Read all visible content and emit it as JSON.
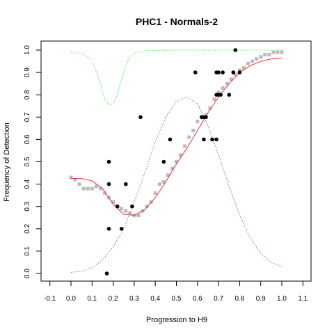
{
  "chart_data": {
    "type": "scatter",
    "title": "PHC1 - Normals-2",
    "xlabel": "Progression to H9",
    "ylabel": "Frequency of Detection",
    "xlim": [
      -0.1,
      1.1
    ],
    "ylim": [
      0.0,
      1.0
    ],
    "xticks": [
      "-0.1",
      "0.0",
      "0.1",
      "0.2",
      "0.3",
      "0.4",
      "0.5",
      "0.6",
      "0.7",
      "0.8",
      "0.9",
      "1.0",
      "1.1"
    ],
    "yticks": [
      "0.0",
      "0.1",
      "0.2",
      "0.3",
      "0.4",
      "0.5",
      "0.6",
      "0.7",
      "0.8",
      "0.9",
      "1.0"
    ],
    "grid": false,
    "series": [
      {
        "kind": "points",
        "color": "#000000",
        "points": [
          [
            0.17,
            0.0
          ],
          [
            0.18,
            0.2
          ],
          [
            0.18,
            0.5
          ],
          [
            0.18,
            0.4
          ],
          [
            0.22,
            0.3
          ],
          [
            0.24,
            0.2
          ],
          [
            0.26,
            0.4
          ],
          [
            0.29,
            0.3
          ],
          [
            0.33,
            0.7
          ],
          [
            0.44,
            0.5
          ],
          [
            0.47,
            0.6
          ],
          [
            0.59,
            0.9
          ],
          [
            0.62,
            0.7
          ],
          [
            0.63,
            0.6
          ],
          [
            0.63,
            0.7
          ],
          [
            0.64,
            0.7
          ],
          [
            0.67,
            0.6
          ],
          [
            0.69,
            0.6
          ],
          [
            0.69,
            0.8
          ],
          [
            0.69,
            0.9
          ],
          [
            0.7,
            0.9
          ],
          [
            0.7,
            0.8
          ],
          [
            0.71,
            0.8
          ],
          [
            0.72,
            0.9
          ],
          [
            0.75,
            0.8
          ],
          [
            0.77,
            0.9
          ],
          [
            0.78,
            1.0
          ],
          [
            0.8,
            0.9
          ]
        ]
      },
      {
        "kind": "running-mean",
        "color": "#bbbbbb",
        "points": [
          [
            0.0,
            0.43
          ],
          [
            0.02,
            0.42
          ],
          [
            0.04,
            0.4
          ],
          [
            0.06,
            0.38
          ],
          [
            0.08,
            0.38
          ],
          [
            0.1,
            0.38
          ],
          [
            0.12,
            0.39
          ],
          [
            0.14,
            0.38
          ],
          [
            0.16,
            0.36
          ],
          [
            0.18,
            0.34
          ],
          [
            0.2,
            0.32
          ],
          [
            0.22,
            0.3
          ],
          [
            0.24,
            0.29
          ],
          [
            0.26,
            0.28
          ],
          [
            0.28,
            0.27
          ],
          [
            0.3,
            0.26
          ],
          [
            0.32,
            0.26
          ],
          [
            0.34,
            0.28
          ],
          [
            0.36,
            0.3
          ],
          [
            0.38,
            0.32
          ],
          [
            0.4,
            0.36
          ],
          [
            0.42,
            0.4
          ],
          [
            0.44,
            0.41
          ],
          [
            0.46,
            0.44
          ],
          [
            0.48,
            0.47
          ],
          [
            0.5,
            0.5
          ],
          [
            0.52,
            0.53
          ],
          [
            0.54,
            0.57
          ],
          [
            0.56,
            0.61
          ],
          [
            0.58,
            0.64
          ],
          [
            0.6,
            0.68
          ],
          [
            0.62,
            0.7
          ],
          [
            0.64,
            0.71
          ],
          [
            0.66,
            0.74
          ],
          [
            0.68,
            0.78
          ],
          [
            0.7,
            0.81
          ],
          [
            0.72,
            0.83
          ],
          [
            0.74,
            0.85
          ],
          [
            0.76,
            0.87
          ],
          [
            0.78,
            0.89
          ],
          [
            0.8,
            0.91
          ],
          [
            0.82,
            0.92
          ],
          [
            0.84,
            0.94
          ],
          [
            0.86,
            0.95
          ],
          [
            0.88,
            0.96
          ],
          [
            0.9,
            0.97
          ],
          [
            0.92,
            0.98
          ],
          [
            0.94,
            0.98
          ],
          [
            0.96,
            0.99
          ],
          [
            0.98,
            0.99
          ],
          [
            1.0,
            0.99
          ]
        ]
      },
      {
        "kind": "fit-line",
        "color": "#ee3333",
        "points": [
          [
            0.0,
            0.425
          ],
          [
            0.05,
            0.425
          ],
          [
            0.1,
            0.415
          ],
          [
            0.15,
            0.38
          ],
          [
            0.2,
            0.31
          ],
          [
            0.25,
            0.265
          ],
          [
            0.3,
            0.26
          ],
          [
            0.35,
            0.285
          ],
          [
            0.4,
            0.34
          ],
          [
            0.45,
            0.41
          ],
          [
            0.5,
            0.49
          ],
          [
            0.55,
            0.56
          ],
          [
            0.6,
            0.64
          ],
          [
            0.65,
            0.72
          ],
          [
            0.7,
            0.79
          ],
          [
            0.75,
            0.85
          ],
          [
            0.8,
            0.9
          ],
          [
            0.85,
            0.93
          ],
          [
            0.9,
            0.95
          ],
          [
            0.95,
            0.96
          ],
          [
            1.0,
            0.965
          ]
        ]
      },
      {
        "kind": "density-line",
        "color": "#6666ee",
        "points": [
          [
            0.0,
            0.005
          ],
          [
            0.05,
            0.01
          ],
          [
            0.1,
            0.025
          ],
          [
            0.15,
            0.06
          ],
          [
            0.2,
            0.12
          ],
          [
            0.25,
            0.2
          ],
          [
            0.3,
            0.32
          ],
          [
            0.35,
            0.45
          ],
          [
            0.4,
            0.59
          ],
          [
            0.45,
            0.7
          ],
          [
            0.5,
            0.77
          ],
          [
            0.55,
            0.79
          ],
          [
            0.6,
            0.76
          ],
          [
            0.65,
            0.66
          ],
          [
            0.7,
            0.53
          ],
          [
            0.75,
            0.39
          ],
          [
            0.8,
            0.26
          ],
          [
            0.85,
            0.16
          ],
          [
            0.9,
            0.09
          ],
          [
            0.95,
            0.05
          ],
          [
            1.0,
            0.03
          ]
        ]
      },
      {
        "kind": "green-line",
        "color": "#44ee44",
        "points": [
          [
            0.0,
            0.99
          ],
          [
            0.05,
            0.985
          ],
          [
            0.08,
            0.97
          ],
          [
            0.11,
            0.93
          ],
          [
            0.14,
            0.85
          ],
          [
            0.16,
            0.78
          ],
          [
            0.18,
            0.755
          ],
          [
            0.2,
            0.76
          ],
          [
            0.22,
            0.8
          ],
          [
            0.24,
            0.87
          ],
          [
            0.26,
            0.93
          ],
          [
            0.28,
            0.97
          ],
          [
            0.31,
            0.99
          ],
          [
            0.36,
            0.998
          ],
          [
            0.5,
            1.0
          ],
          [
            0.75,
            1.0
          ],
          [
            1.0,
            1.0
          ]
        ]
      }
    ]
  }
}
